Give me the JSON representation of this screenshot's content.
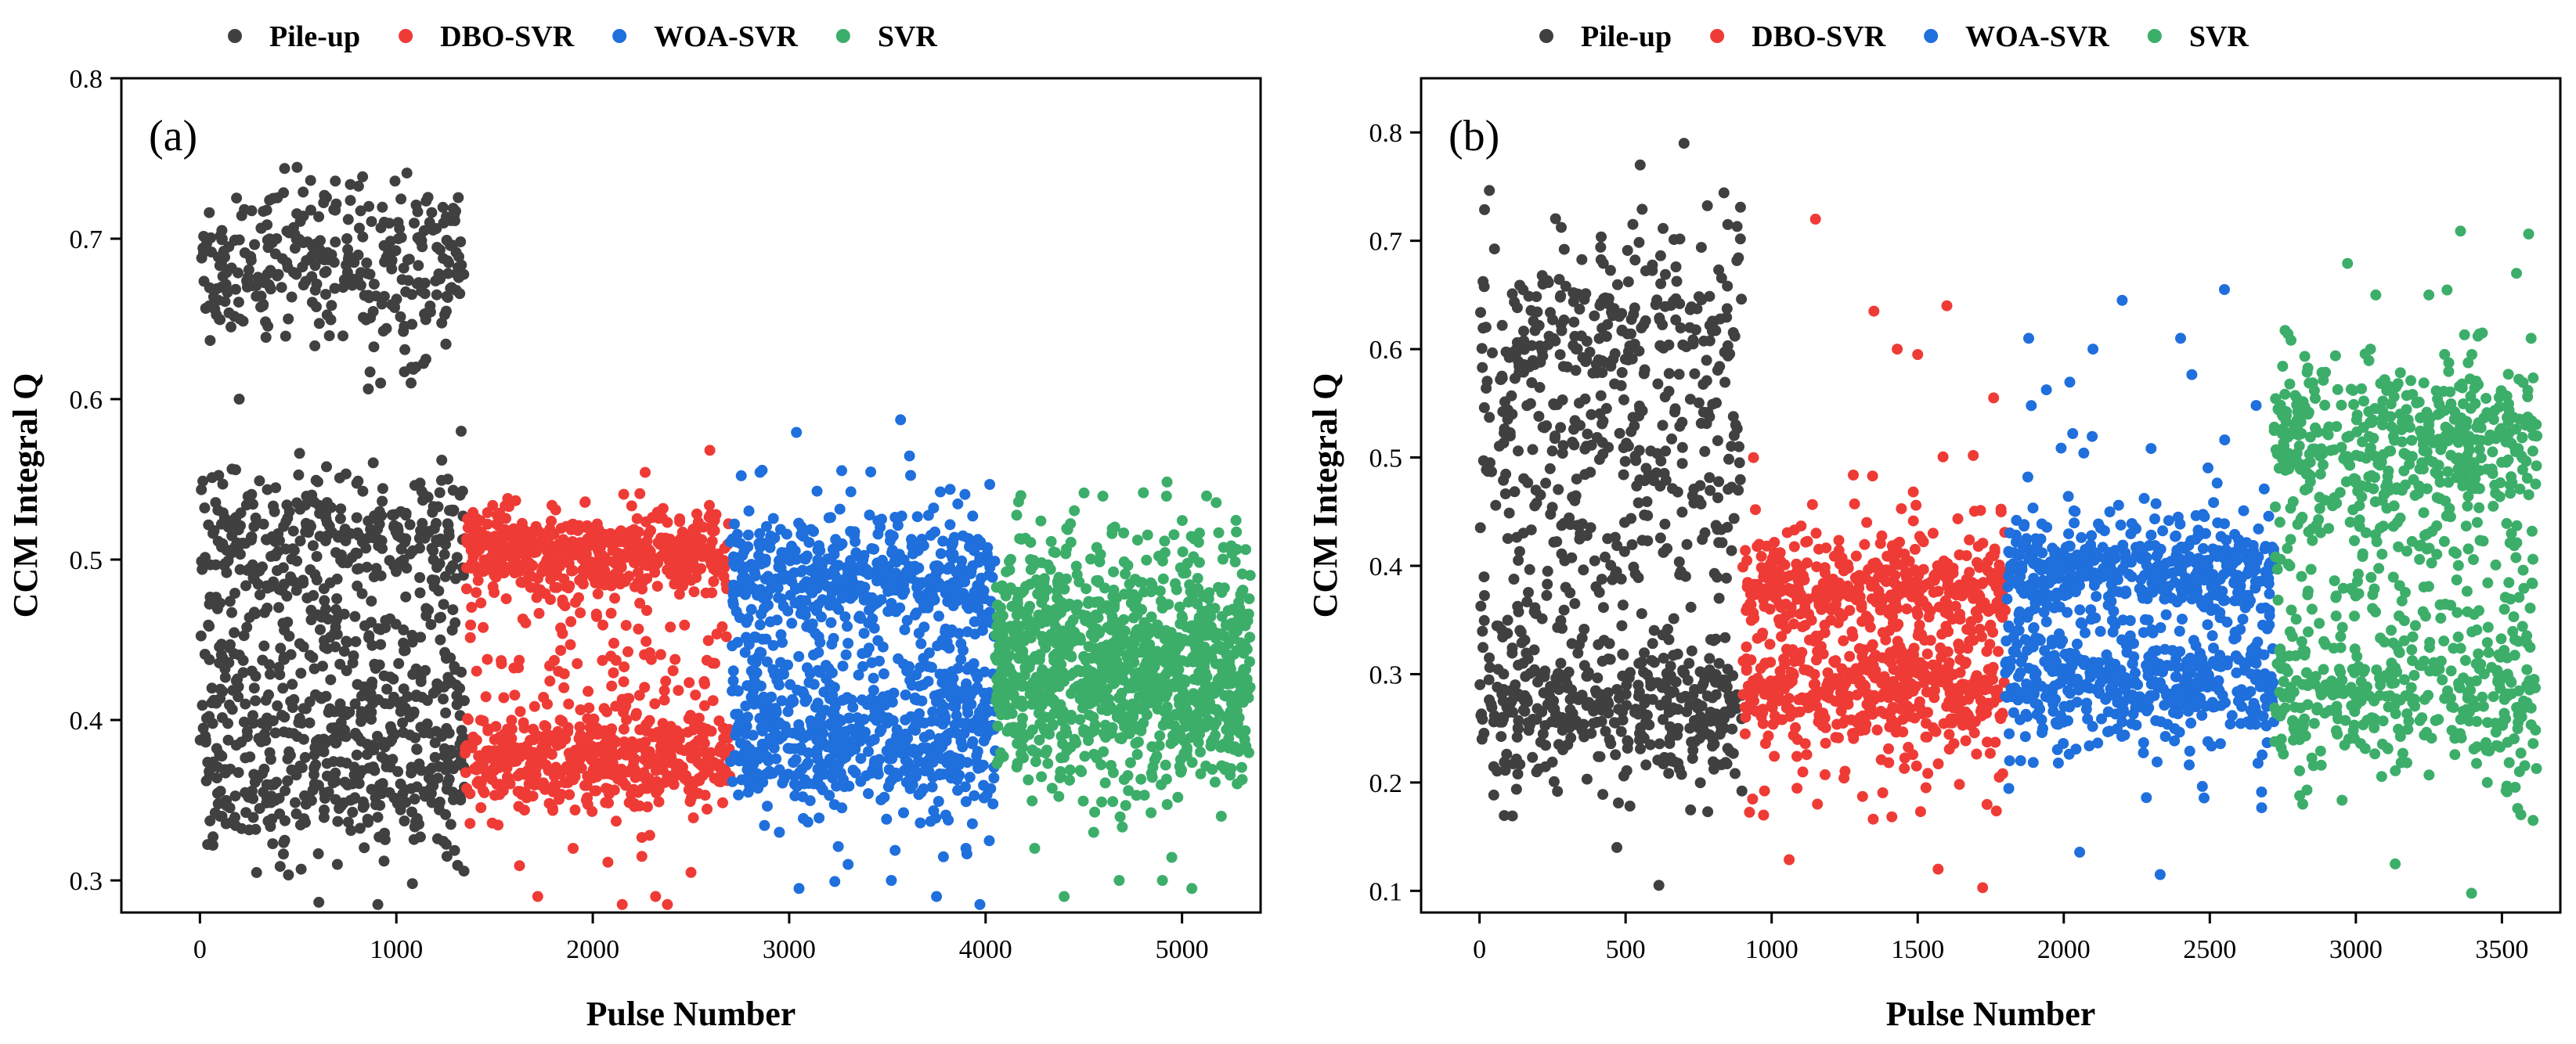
{
  "chart_data": [
    {
      "type": "scatter",
      "panel_label": "(a)",
      "xlabel": "Pulse Number",
      "ylabel": "CCM Integral Q",
      "xlim": [
        -400,
        5400
      ],
      "ylim": [
        0.28,
        0.8
      ],
      "xticks": [
        0,
        1000,
        2000,
        3000,
        4000,
        5000
      ],
      "xtick_labels": [
        "0",
        "1000",
        "2000",
        "3000",
        "4000",
        "5000"
      ],
      "yticks": [
        0.3,
        0.4,
        0.5,
        0.6,
        0.7,
        0.8
      ],
      "ytick_labels": [
        "0.3",
        "0.4",
        "0.5",
        "0.6",
        "0.7",
        "0.8"
      ],
      "grid": false,
      "legend_position": "top",
      "series": [
        {
          "name": "Pile-up",
          "color": "#404040",
          "x_range": [
            0,
            1350
          ],
          "bands": [
            {
              "center": 0.685,
              "spread": 0.025,
              "weight": 0.28
            },
            {
              "center": 0.51,
              "spread": 0.025,
              "weight": 0.26
            },
            {
              "center": 0.42,
              "spread": 0.035,
              "weight": 0.22
            },
            {
              "center": 0.36,
              "spread": 0.025,
              "weight": 0.24
            }
          ],
          "outliers": [
            [
              200,
              0.6
            ],
            [
              450,
              0.65
            ],
            [
              920,
              0.61
            ],
            [
              1100,
              0.62
            ],
            [
              1330,
              0.58
            ],
            [
              700,
              0.31
            ]
          ],
          "count": 1200
        },
        {
          "name": "DBO-SVR",
          "color": "#ef3b36",
          "x_range": [
            1350,
            2700
          ],
          "bands": [
            {
              "center": 0.505,
              "spread": 0.012,
              "weight": 0.42
            },
            {
              "center": 0.375,
              "spread": 0.015,
              "weight": 0.42
            },
            {
              "center": 0.44,
              "spread": 0.05,
              "weight": 0.16
            }
          ],
          "outliers": [
            [
              1720,
              0.29
            ],
            [
              2150,
              0.285
            ],
            [
              2320,
              0.29
            ],
            [
              2380,
              0.285
            ],
            [
              2500,
              0.305
            ],
            [
              1900,
              0.32
            ],
            [
              2250,
              0.315
            ]
          ],
          "count": 1100
        },
        {
          "name": "WOA-SVR",
          "color": "#1f6fdc",
          "x_range": [
            2700,
            4050
          ],
          "bands": [
            {
              "center": 0.49,
              "spread": 0.015,
              "weight": 0.32
            },
            {
              "center": 0.39,
              "spread": 0.025,
              "weight": 0.4
            },
            {
              "center": 0.44,
              "spread": 0.05,
              "weight": 0.28
            }
          ],
          "outliers": [
            [
              3050,
              0.295
            ],
            [
              3520,
              0.3
            ],
            [
              3750,
              0.29
            ],
            [
              3300,
              0.31
            ],
            [
              3900,
              0.32
            ],
            [
              2950,
              0.33
            ]
          ],
          "count": 1100
        },
        {
          "name": "SVR",
          "color": "#3cae6a",
          "x_range": [
            4050,
            5350
          ],
          "bands": [
            {
              "center": 0.425,
              "spread": 0.035,
              "weight": 0.82
            },
            {
              "center": 0.47,
              "spread": 0.03,
              "weight": 0.18
            }
          ],
          "outliers": [
            [
              4400,
              0.29
            ],
            [
              4680,
              0.3
            ],
            [
              4900,
              0.3
            ],
            [
              5050,
              0.295
            ],
            [
              4250,
              0.32
            ],
            [
              4550,
              0.33
            ],
            [
              5200,
              0.34
            ]
          ],
          "count": 1100
        }
      ]
    },
    {
      "type": "scatter",
      "panel_label": "(b)",
      "xlabel": "Pulse Number",
      "ylabel": "CCM Integral Q",
      "xlim": [
        -200,
        3700
      ],
      "ylim": [
        0.08,
        0.85
      ],
      "xticks": [
        0,
        500,
        1000,
        1500,
        2000,
        2500,
        3000,
        3500
      ],
      "xtick_labels": [
        "0",
        "500",
        "1000",
        "1500",
        "2000",
        "2500",
        "3000",
        "3500"
      ],
      "yticks": [
        0.1,
        0.2,
        0.3,
        0.4,
        0.5,
        0.6,
        0.7,
        0.8
      ],
      "ytick_labels": [
        "0.1",
        "0.2",
        "0.3",
        "0.4",
        "0.5",
        "0.6",
        "0.7",
        "0.8"
      ],
      "grid": false,
      "legend_position": "top",
      "series": [
        {
          "name": "Pile-up",
          "color": "#404040",
          "x_range": [
            0,
            900
          ],
          "bands": [
            {
              "center": 0.27,
              "spread": 0.035,
              "weight": 0.38
            },
            {
              "center": 0.45,
              "spread": 0.12,
              "weight": 0.42
            },
            {
              "center": 0.62,
              "spread": 0.05,
              "weight": 0.2
            }
          ],
          "outliers": [
            [
              470,
              0.14
            ],
            [
              700,
              0.79
            ],
            [
              550,
              0.77
            ],
            [
              850,
              0.715
            ]
          ],
          "count": 900
        },
        {
          "name": "DBO-SVR",
          "color": "#ef3b36",
          "x_range": [
            900,
            1800
          ],
          "bands": [
            {
              "center": 0.38,
              "spread": 0.02,
              "weight": 0.35
            },
            {
              "center": 0.28,
              "spread": 0.02,
              "weight": 0.3
            },
            {
              "center": 0.32,
              "spread": 0.07,
              "weight": 0.35
            }
          ],
          "outliers": [
            [
              1150,
              0.72
            ],
            [
              1600,
              0.64
            ],
            [
              1350,
              0.635
            ],
            [
              1430,
              0.6
            ],
            [
              1570,
              0.12
            ],
            [
              1500,
              0.595
            ],
            [
              1760,
              0.555
            ]
          ],
          "count": 900
        },
        {
          "name": "WOA-SVR",
          "color": "#1f6fdc",
          "x_range": [
            1800,
            2720
          ],
          "bands": [
            {
              "center": 0.4,
              "spread": 0.02,
              "weight": 0.38
            },
            {
              "center": 0.29,
              "spread": 0.025,
              "weight": 0.32
            },
            {
              "center": 0.35,
              "spread": 0.07,
              "weight": 0.3
            }
          ],
          "outliers": [
            [
              2330,
              0.115
            ],
            [
              2550,
              0.655
            ],
            [
              2200,
              0.645
            ],
            [
              2400,
              0.61
            ],
            [
              1880,
              0.61
            ],
            [
              2100,
              0.6
            ]
          ],
          "count": 900
        },
        {
          "name": "SVR",
          "color": "#3cae6a",
          "x_range": [
            2720,
            3620
          ],
          "bands": [
            {
              "center": 0.52,
              "spread": 0.03,
              "weight": 0.36
            },
            {
              "center": 0.28,
              "spread": 0.035,
              "weight": 0.3
            },
            {
              "center": 0.4,
              "spread": 0.1,
              "weight": 0.34
            }
          ],
          "outliers": [
            [
              3550,
              0.67
            ],
            [
              3250,
              0.65
            ],
            [
              3600,
              0.61
            ],
            [
              3050,
              0.6
            ],
            [
              3560,
              0.21
            ],
            [
              3450,
              0.2
            ]
          ],
          "count": 900
        }
      ]
    }
  ]
}
